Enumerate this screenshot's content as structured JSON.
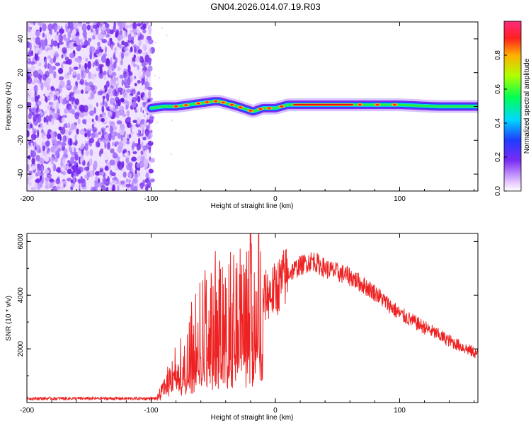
{
  "title": "GN04.2026.014.07.19.R03",
  "colors": {
    "snr_line": "#ee2222",
    "band_core": "#ee1111",
    "noise": "#7a2cf0"
  },
  "chart_data": [
    {
      "type": "heatmap",
      "xlabel": "Height of straight line (km)",
      "ylabel": "Frequency (Hz)",
      "xlim": [
        -200,
        163
      ],
      "ylim": [
        -50,
        50
      ],
      "xticks": [
        -200,
        -100,
        0,
        100
      ],
      "yticks": [
        -40,
        -20,
        0,
        20,
        40
      ],
      "colorbar": {
        "label": "Normalized spectral amplitude",
        "range": [
          0,
          1
        ],
        "ticks": [
          0.0,
          0.2,
          0.4,
          0.6,
          0.8
        ]
      },
      "noise_region_x": [
        -200,
        -100
      ],
      "ridge": {
        "x": [
          -100,
          -90,
          -80,
          -70,
          -60,
          -50,
          -45,
          -40,
          -30,
          -22,
          -18,
          -10,
          0,
          10,
          30,
          60,
          100,
          130,
          163
        ],
        "y": [
          -1,
          0,
          0,
          1,
          2,
          3,
          3,
          2,
          0,
          -2,
          -3,
          -1,
          -1,
          1,
          1,
          1,
          1,
          0,
          0
        ]
      }
    },
    {
      "type": "line",
      "xlabel": "Height of straight line (km)",
      "ylabel": "SNR (10 * v/v)",
      "xlim": [
        -200,
        163
      ],
      "ylim": [
        0,
        6300
      ],
      "xticks": [
        -200,
        -100,
        0,
        100
      ],
      "yticks": [
        2000,
        4000,
        6000
      ],
      "envelope": {
        "x": [
          -200,
          -95,
          -90,
          -85,
          -80,
          -70,
          -60,
          -50,
          -40,
          -30,
          -20,
          -10,
          0,
          10,
          20,
          30,
          40,
          60,
          80,
          100,
          120,
          140,
          163
        ],
        "y": [
          150,
          150,
          500,
          900,
          1300,
          2000,
          2700,
          3100,
          3350,
          3500,
          3800,
          3900,
          4200,
          4800,
          5100,
          5300,
          5000,
          4700,
          4100,
          3300,
          2800,
          2300,
          1800
        ]
      }
    }
  ]
}
